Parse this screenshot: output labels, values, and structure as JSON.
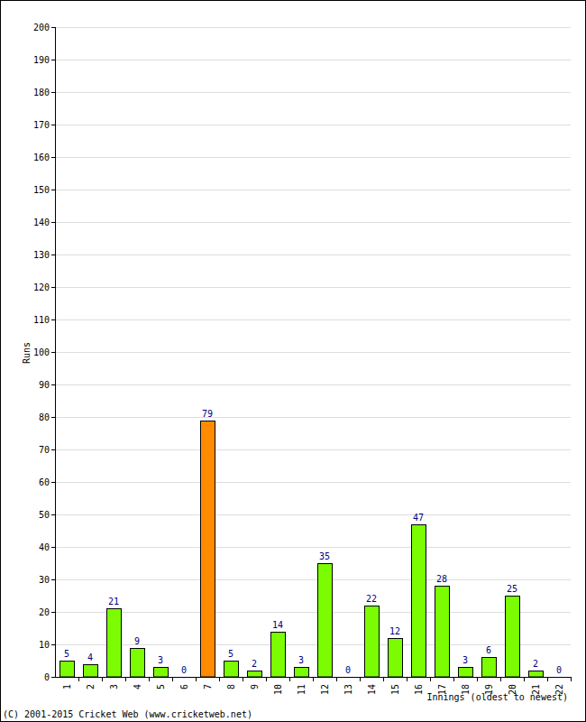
{
  "chart_data": {
    "type": "bar",
    "x_label": "Innings (oldest to newest)",
    "y_label": "Runs",
    "annotations": [
      "(C) 2001-2015 Cricket Web (www.cricketweb.net)"
    ],
    "categories": [
      "1",
      "2",
      "3",
      "4",
      "5",
      "6",
      "7",
      "8",
      "9",
      "10",
      "11",
      "12",
      "13",
      "14",
      "15",
      "16",
      "17",
      "18",
      "19",
      "20",
      "21",
      "22"
    ],
    "values": [
      5,
      4,
      21,
      9,
      3,
      0,
      79,
      5,
      2,
      14,
      3,
      35,
      0,
      22,
      12,
      47,
      28,
      3,
      6,
      25,
      2,
      0
    ],
    "colors": [
      "#7cfc00",
      "#7cfc00",
      "#7cfc00",
      "#7cfc00",
      "#7cfc00",
      "#7cfc00",
      "#ff8c00",
      "#7cfc00",
      "#7cfc00",
      "#7cfc00",
      "#7cfc00",
      "#7cfc00",
      "#7cfc00",
      "#7cfc00",
      "#7cfc00",
      "#7cfc00",
      "#7cfc00",
      "#7cfc00",
      "#7cfc00",
      "#7cfc00",
      "#7cfc00",
      "#7cfc00"
    ],
    "ylim": [
      0,
      200
    ],
    "yticks": [
      0,
      10,
      20,
      30,
      40,
      50,
      60,
      70,
      80,
      90,
      100,
      110,
      120,
      130,
      140,
      150,
      160,
      170,
      180,
      190,
      200
    ],
    "grid": true,
    "data_labels": true
  }
}
